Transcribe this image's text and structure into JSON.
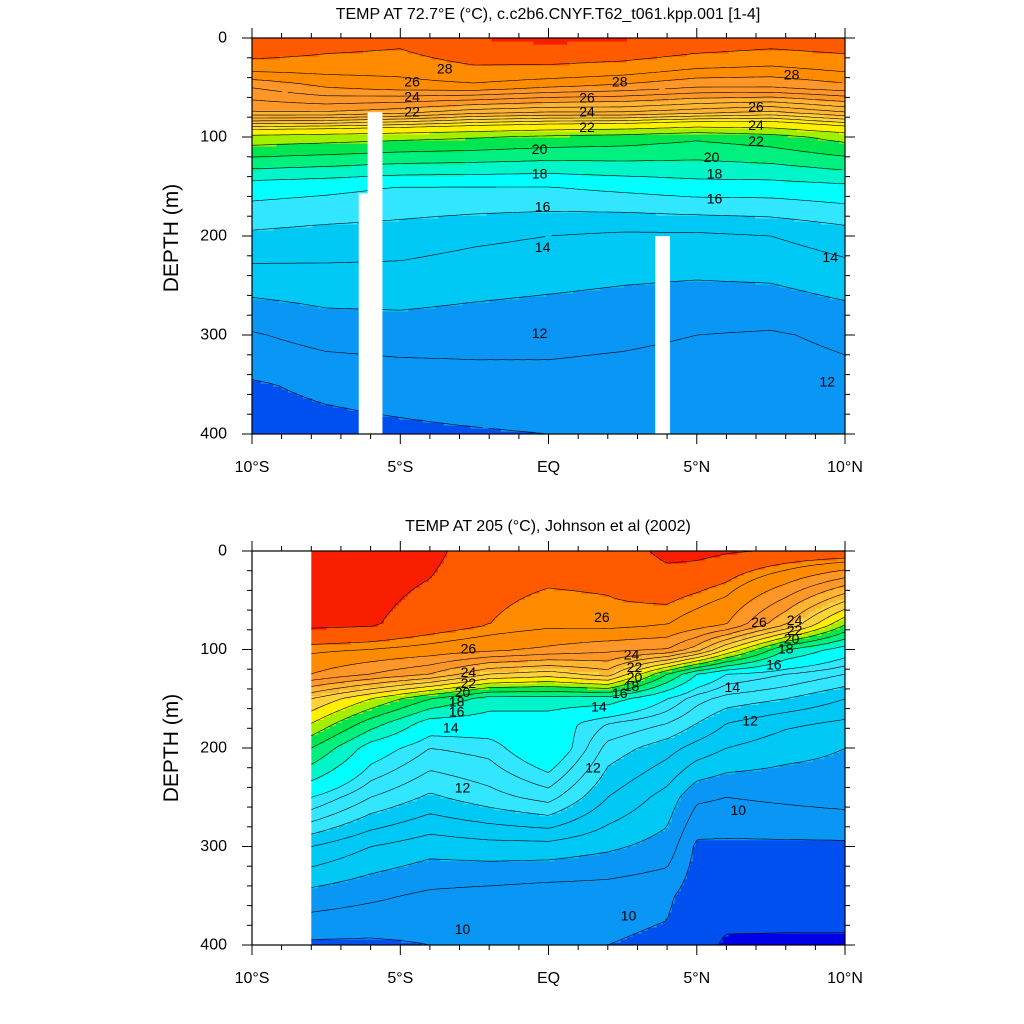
{
  "chart_data": [
    {
      "type": "contour",
      "title": "TEMP AT  72.7°E (°C), c.c2b6.CNYF.T62_t061.kpp.001 [1-4]",
      "ylabel": "DEPTH (m)",
      "xlim": [
        -10,
        10
      ],
      "ylim": [
        400,
        0
      ],
      "xticks": [
        -10,
        -5,
        0,
        5,
        10
      ],
      "xtick_labels": [
        "10°S",
        "5°S",
        "EQ",
        "5°N",
        "10°N"
      ],
      "yticks": [
        0,
        100,
        200,
        300,
        400
      ],
      "ytick_labels": [
        "0",
        "100",
        "200",
        "300",
        "400"
      ],
      "data_xmin": -10,
      "colors": [
        "#0050f0",
        "#0a96f5",
        "#00c8f5",
        "#33e6ff",
        "#00ffff",
        "#00f5c8",
        "#00f080",
        "#00e650",
        "#a0f000",
        "#fff000",
        "#ffd23c",
        "#ffb432",
        "#ff9628",
        "#ff8c00",
        "#ff5a00",
        "#fa1e00"
      ],
      "bounds": [
        0,
        11,
        13,
        15,
        16,
        17,
        18,
        19,
        20,
        21,
        22.5,
        23.5,
        25,
        26.5,
        27.8,
        29,
        40
      ],
      "contour_levels": [
        11,
        12,
        13,
        14,
        15,
        16,
        17,
        18,
        19,
        20,
        21,
        22,
        22.5,
        23,
        23.5,
        24,
        24.5,
        25,
        25.5,
        26,
        26.5,
        27,
        27.8
      ],
      "profile_x": [
        -10,
        -7.5,
        -5,
        -2.5,
        0,
        2.5,
        5,
        7.5,
        10
      ],
      "profile_depths": [
        0,
        50,
        75,
        100,
        150,
        200,
        300,
        350,
        400
      ],
      "profile_temps": [
        [
          29.1,
          28.4,
          28.1,
          29.0,
          29.3,
          29.1,
          28.6,
          28.3,
          28.5
        ],
        [
          26.0,
          26.5,
          26.7,
          26.8,
          26.5,
          26.3,
          26.0,
          26.0,
          26.3
        ],
        [
          25.0,
          25.0,
          24.7,
          24.2,
          24.0,
          24.0,
          23.7,
          23.4,
          24.0
        ],
        [
          20.7,
          20.5,
          20.3,
          20.1,
          19.8,
          19.6,
          19.2,
          19.6,
          20.4
        ],
        [
          16.5,
          16.3,
          16.0,
          16.0,
          16.0,
          16.3,
          16.6,
          16.6,
          16.8
        ],
        [
          14.8,
          14.6,
          14.5,
          14.2,
          14.0,
          13.8,
          13.8,
          14.0,
          14.5
        ],
        [
          11.9,
          12.4,
          12.5,
          12.4,
          12.3,
          12.2,
          12.0,
          11.9,
          12.2
        ],
        [
          10.9,
          11.2,
          11.4,
          11.6,
          11.7,
          11.6,
          11.5,
          11.5,
          11.7
        ],
        [
          10.6,
          10.7,
          10.8,
          10.9,
          11.0,
          11.0,
          11.0,
          11.0,
          11.2
        ]
      ],
      "masks": [
        {
          "x0": -6.4,
          "x1": -5.8,
          "y0": 157,
          "y1": 400
        },
        {
          "x0": -6.1,
          "x1": -5.6,
          "y0": 75,
          "y1": 400
        },
        {
          "x0": 3.6,
          "x1": 4.1,
          "y0": 200,
          "y1": 400
        }
      ],
      "line_labels": [
        {
          "text": "28",
          "x": -3.5,
          "y": 31
        },
        {
          "text": "28",
          "x": 2.4,
          "y": 44
        },
        {
          "text": "28",
          "x": 8.2,
          "y": 37
        },
        {
          "text": "26",
          "x": -4.6,
          "y": 44
        },
        {
          "text": "24",
          "x": -4.6,
          "y": 59
        },
        {
          "text": "22",
          "x": -4.6,
          "y": 74
        },
        {
          "text": "26",
          "x": 1.3,
          "y": 60
        },
        {
          "text": "24",
          "x": 1.3,
          "y": 74
        },
        {
          "text": "22",
          "x": 1.3,
          "y": 90
        },
        {
          "text": "26",
          "x": 7.0,
          "y": 69
        },
        {
          "text": "24",
          "x": 7.0,
          "y": 88
        },
        {
          "text": "22",
          "x": 7.0,
          "y": 104
        },
        {
          "text": "20",
          "x": -0.3,
          "y": 112
        },
        {
          "text": "18",
          "x": -0.3,
          "y": 137
        },
        {
          "text": "16",
          "x": -0.2,
          "y": 170
        },
        {
          "text": "14",
          "x": -0.2,
          "y": 211
        },
        {
          "text": "12",
          "x": -0.3,
          "y": 298
        },
        {
          "text": "20",
          "x": 5.5,
          "y": 120
        },
        {
          "text": "18",
          "x": 5.6,
          "y": 137
        },
        {
          "text": "16",
          "x": 5.6,
          "y": 162
        },
        {
          "text": "14",
          "x": 9.5,
          "y": 221
        },
        {
          "text": "12",
          "x": 9.4,
          "y": 347
        }
      ]
    },
    {
      "type": "contour",
      "title": "TEMP AT 205 (°C), Johnson et al (2002)",
      "ylabel": "DEPTH (m)",
      "xlim": [
        -10,
        10
      ],
      "ylim": [
        400,
        0
      ],
      "xticks": [
        -10,
        -5,
        0,
        5,
        10
      ],
      "xtick_labels": [
        "10°S",
        "5°S",
        "EQ",
        "5°N",
        "10°N"
      ],
      "yticks": [
        0,
        100,
        200,
        300,
        400
      ],
      "ytick_labels": [
        "0",
        "100",
        "200",
        "300",
        "400"
      ],
      "data_xmin": -8,
      "colors": [
        "#0000e8",
        "#0050f0",
        "#0a96f5",
        "#00c8f5",
        "#33e6ff",
        "#00ffff",
        "#00f5c8",
        "#00f080",
        "#00e650",
        "#a0f000",
        "#fff000",
        "#ffd23c",
        "#ffb432",
        "#ff9628",
        "#ff8c00",
        "#ff5a00",
        "#fa1e00"
      ],
      "bounds": [
        0,
        9,
        10,
        11,
        12.5,
        14,
        15,
        16,
        17,
        18,
        19,
        20,
        21.5,
        23,
        25,
        26.5,
        27.5,
        40
      ],
      "contour_levels": [
        9,
        10,
        10.5,
        11,
        11.5,
        12,
        12.5,
        13,
        13.5,
        14,
        15,
        16,
        17,
        18,
        19,
        20,
        21,
        22,
        23,
        24,
        25,
        26,
        26.5,
        27.5
      ],
      "profile_x": [
        -8,
        -6,
        -4,
        -2,
        0,
        2,
        4,
        5,
        6,
        8,
        10
      ],
      "profile_depths": [
        0,
        75,
        100,
        125,
        150,
        175,
        200,
        250,
        300,
        350,
        400
      ],
      "profile_temps": [
        [
          28.0,
          28.0,
          27.8,
          26.8,
          26.8,
          26.8,
          27.8,
          27.8,
          27.6,
          27.4,
          27.4
        ],
        [
          27.7,
          27.6,
          27.0,
          26.5,
          26.2,
          26.3,
          26.0,
          25.5,
          25.0,
          22.0,
          18.0
        ],
        [
          26.2,
          26.0,
          25.7,
          25.3,
          24.8,
          24.3,
          24.0,
          22.5,
          20.0,
          16.0,
          14.5
        ],
        [
          25.0,
          24.0,
          23.0,
          21.0,
          20.5,
          21.5,
          17.0,
          15.0,
          14.0,
          13.5,
          13.0
        ],
        [
          21.0,
          19.0,
          17.0,
          15.5,
          15.5,
          15.5,
          14.0,
          13.2,
          12.8,
          12.5,
          12.0
        ],
        [
          19.0,
          16.5,
          14.5,
          14.5,
          14.5,
          13.5,
          13.0,
          12.5,
          12.0,
          11.6,
          11.4
        ],
        [
          17.0,
          14.5,
          13.5,
          13.7,
          14.8,
          12.8,
          12.2,
          11.8,
          11.5,
          11.2,
          11.0
        ],
        [
          14.0,
          13.0,
          12.4,
          12.8,
          13.2,
          12.0,
          11.3,
          10.6,
          10.5,
          10.6,
          10.7
        ],
        [
          12.0,
          11.5,
          11.2,
          11.3,
          11.3,
          11.1,
          10.8,
          9.9,
          9.9,
          9.9,
          9.9
        ],
        [
          10.8,
          10.6,
          10.4,
          10.3,
          10.2,
          10.2,
          10.1,
          9.7,
          9.7,
          9.6,
          9.6
        ],
        [
          9.9,
          9.9,
          10.0,
          10.1,
          10.0,
          10.0,
          9.9,
          9.5,
          8.8,
          8.8,
          8.8
        ]
      ],
      "masks": [],
      "line_labels": [
        {
          "text": "26",
          "x": -2.7,
          "y": 99
        },
        {
          "text": "24",
          "x": -2.7,
          "y": 123
        },
        {
          "text": "22",
          "x": -2.7,
          "y": 134
        },
        {
          "text": "20",
          "x": -2.9,
          "y": 143
        },
        {
          "text": "18",
          "x": -3.1,
          "y": 153
        },
        {
          "text": "16",
          "x": -3.1,
          "y": 163
        },
        {
          "text": "14",
          "x": -3.3,
          "y": 179
        },
        {
          "text": "12",
          "x": -2.9,
          "y": 240
        },
        {
          "text": "26",
          "x": 1.8,
          "y": 67
        },
        {
          "text": "24",
          "x": 2.8,
          "y": 105
        },
        {
          "text": "22",
          "x": 2.9,
          "y": 118
        },
        {
          "text": "20",
          "x": 2.9,
          "y": 128
        },
        {
          "text": "18",
          "x": 2.8,
          "y": 137
        },
        {
          "text": "16",
          "x": 2.4,
          "y": 144
        },
        {
          "text": "14",
          "x": 1.7,
          "y": 158
        },
        {
          "text": "12",
          "x": 1.5,
          "y": 220
        },
        {
          "text": "26",
          "x": 7.1,
          "y": 72
        },
        {
          "text": "24",
          "x": 8.3,
          "y": 70
        },
        {
          "text": "22",
          "x": 8.3,
          "y": 80
        },
        {
          "text": "20",
          "x": 8.2,
          "y": 89
        },
        {
          "text": "18",
          "x": 8.0,
          "y": 99
        },
        {
          "text": "16",
          "x": 7.6,
          "y": 115
        },
        {
          "text": "14",
          "x": 6.2,
          "y": 138
        },
        {
          "text": "12",
          "x": 6.8,
          "y": 172
        },
        {
          "text": "10",
          "x": 6.4,
          "y": 263
        },
        {
          "text": "10",
          "x": 2.7,
          "y": 370
        },
        {
          "text": "10",
          "x": -2.9,
          "y": 384
        }
      ]
    }
  ]
}
